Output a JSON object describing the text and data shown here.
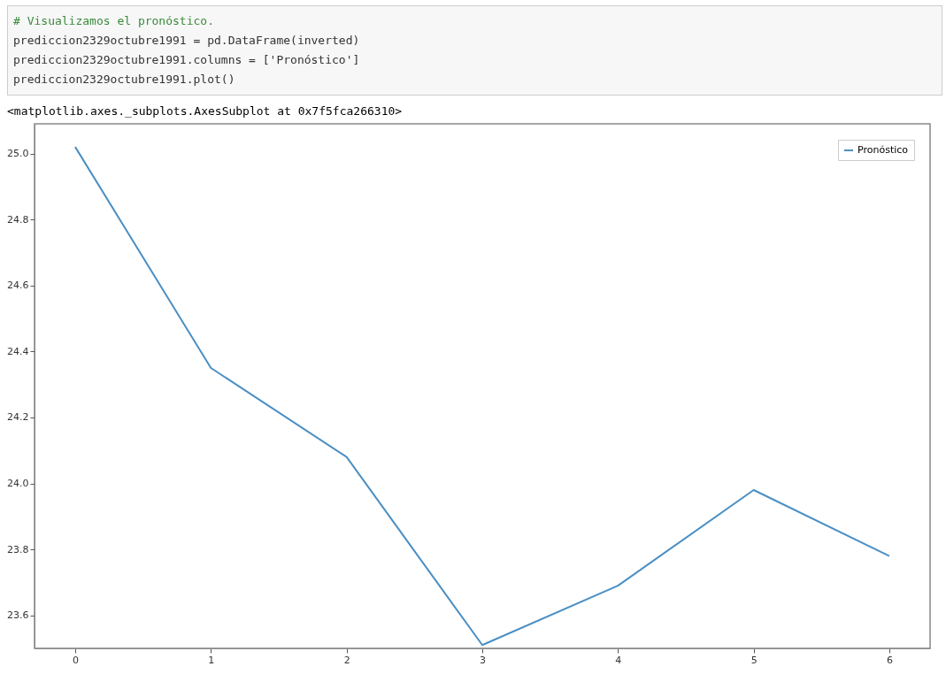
{
  "chart_data": {
    "type": "line",
    "annotations": [
      "# Visualizamos el pronóstico.",
      "prediccion2329octubre1991 = pd.DataFrame(inverted)",
      "prediccion2329octubre1991.columns = ['Pronóstico']",
      "prediccion2329octubre1991.plot()",
      "<matplotlib.axes._subplots.AxesSubplot at 0x7f5fca266310>"
    ],
    "x": [
      0,
      1,
      2,
      3,
      4,
      5,
      6
    ],
    "series": [
      {
        "name": "Pronóstico",
        "color": "#4a8fc4",
        "values": [
          25.02,
          24.35,
          24.08,
          23.51,
          23.69,
          23.98,
          23.78
        ]
      }
    ],
    "xlim": [
      -0.3,
      6.3
    ],
    "xticks": [
      0,
      1,
      2,
      3,
      4,
      5,
      6
    ],
    "ylim": [
      23.5,
      25.09
    ],
    "yticks": [
      23.6,
      23.8,
      {
        "value": 24,
        "label": "24.0"
      },
      24.2,
      24.4,
      24.6,
      24.8,
      {
        "value": 25,
        "label": "25.0"
      }
    ],
    "legend": "top right",
    "grid": false
  }
}
